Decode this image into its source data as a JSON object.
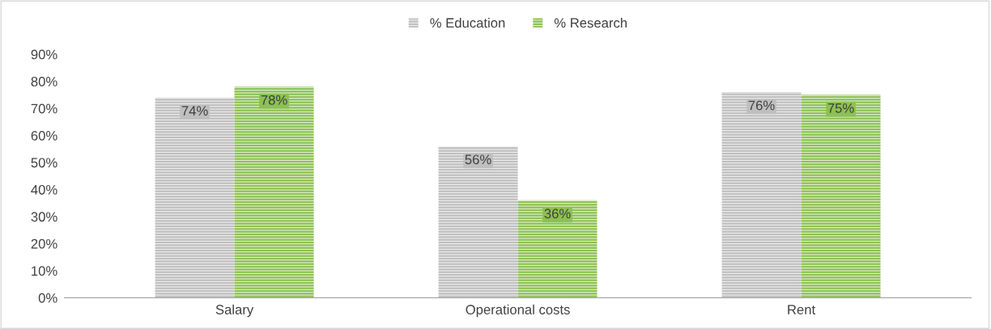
{
  "chart_data": {
    "type": "bar",
    "categories": [
      "Salary",
      "Operational costs",
      "Rent"
    ],
    "series": [
      {
        "name": "% Education",
        "color": "#bfbfbf",
        "values": [
          74,
          56,
          76
        ]
      },
      {
        "name": "% Research",
        "color": "#8cc152",
        "values": [
          78,
          36,
          75
        ]
      }
    ],
    "value_labels": [
      [
        "74%",
        "56%",
        "76%"
      ],
      [
        "78%",
        "36%",
        "75%"
      ]
    ],
    "ylim": [
      0,
      90
    ],
    "yticks": [
      {
        "value": 0,
        "label": "0%"
      },
      {
        "value": 10,
        "label": "10%"
      },
      {
        "value": 20,
        "label": "20%"
      },
      {
        "value": 30,
        "label": "30%"
      },
      {
        "value": 40,
        "label": "40%"
      },
      {
        "value": 50,
        "label": "50%"
      },
      {
        "value": 60,
        "label": "60%"
      },
      {
        "value": 70,
        "label": "70%"
      },
      {
        "value": 80,
        "label": "80%"
      },
      {
        "value": 90,
        "label": "90%"
      }
    ],
    "legend": "top",
    "grid": false
  }
}
